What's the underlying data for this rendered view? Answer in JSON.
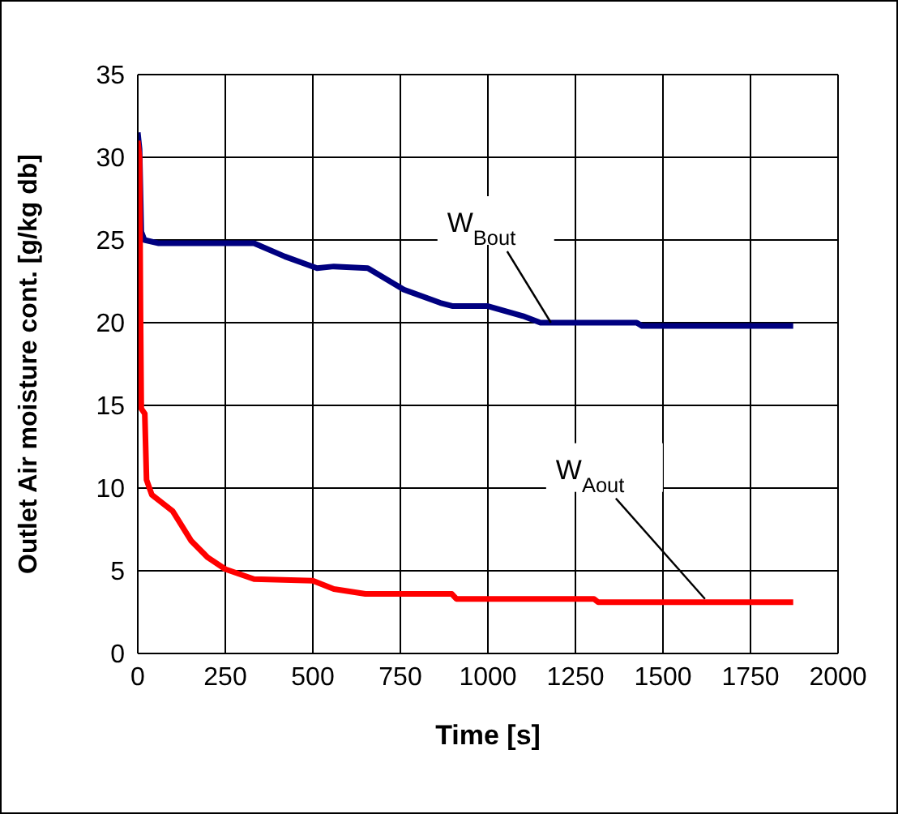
{
  "chart_data": {
    "type": "line",
    "xlabel": "Time [s]",
    "ylabel": "Outlet Air moisture cont.  [g/kg db]",
    "xlim": [
      0,
      2000
    ],
    "xticks": [
      0,
      250,
      500,
      750,
      1000,
      1250,
      1500,
      1750,
      2000
    ],
    "ylim": [
      0,
      35
    ],
    "yticks": [
      0,
      5,
      10,
      15,
      20,
      25,
      30,
      35
    ],
    "grid": true,
    "series": [
      {
        "color": "#000080",
        "x": [
          0,
          5,
          10,
          19,
          60,
          250,
          332,
          420,
          512,
          560,
          657,
          760,
          864,
          900,
          1000,
          1100,
          1150,
          1425,
          1440,
          1872
        ],
        "values": [
          31.5,
          30.5,
          25.5,
          25,
          24.8,
          24.8,
          24.8,
          24,
          23.3,
          23.4,
          23.3,
          22,
          21.2,
          21,
          21,
          20.4,
          20,
          20,
          19.8,
          19.8
        ]
      },
      {
        "color": "#ff0000",
        "x": [
          0,
          5,
          8,
          10,
          20,
          25,
          40,
          100,
          153,
          200,
          250,
          332,
          500,
          560,
          650,
          897,
          910,
          1303,
          1315,
          1872
        ],
        "values": [
          31,
          30,
          20,
          14.8,
          14.5,
          10.5,
          9.6,
          8.6,
          6.8,
          5.8,
          5.1,
          4.5,
          4.4,
          3.9,
          3.6,
          3.6,
          3.3,
          3.3,
          3.1,
          3.1
        ]
      }
    ],
    "annotations": [
      {
        "text": "W$_{Bout}$",
        "x": 1180,
        "y": 20
      },
      {
        "text": "W$_{Aout}$",
        "x": 1620,
        "y": 3.3
      }
    ]
  }
}
